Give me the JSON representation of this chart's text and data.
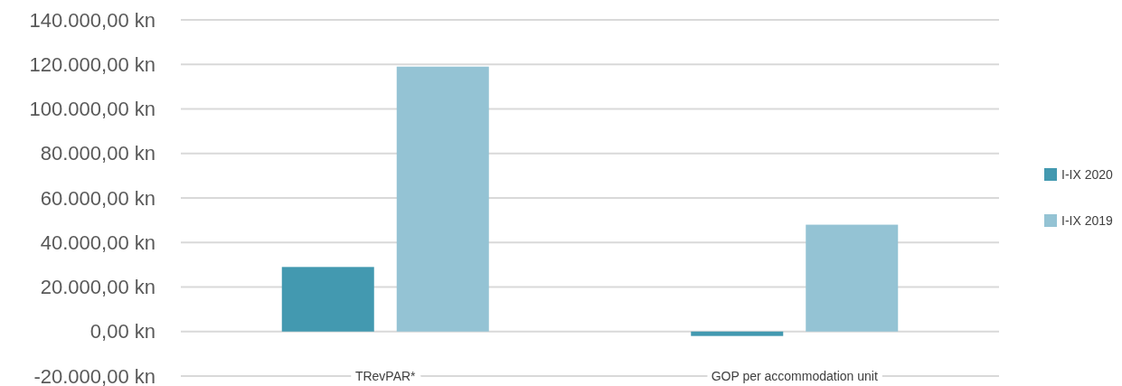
{
  "chart_data": {
    "type": "bar",
    "categories": [
      "TRevPAR*",
      "GOP per accommodation unit"
    ],
    "series": [
      {
        "name": "I-IX 2020",
        "color": "#4399b0",
        "values": [
          29000,
          -2000
        ]
      },
      {
        "name": "I-IX 2019",
        "color": "#94c3d4",
        "values": [
          119000,
          48000
        ]
      }
    ],
    "ylim": [
      -20000,
      140000
    ],
    "yticks": [
      {
        "value": -20000,
        "label": "-20.000,00 kn"
      },
      {
        "value": 0,
        "label": "0,00 kn"
      },
      {
        "value": 20000,
        "label": "20.000,00 kn"
      },
      {
        "value": 40000,
        "label": "40.000,00 kn"
      },
      {
        "value": 60000,
        "label": "60.000,00 kn"
      },
      {
        "value": 80000,
        "label": "80.000,00 kn"
      },
      {
        "value": 100000,
        "label": "100.000,00 kn"
      },
      {
        "value": 120000,
        "label": "120.000,00 kn"
      },
      {
        "value": 140000,
        "label": "140.000,00 kn"
      }
    ],
    "grid": "y",
    "legend": "right"
  }
}
